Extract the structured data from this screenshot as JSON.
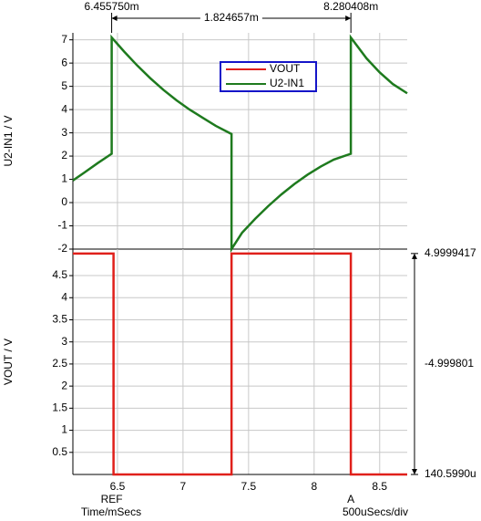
{
  "chart_data": [
    {
      "type": "line",
      "y_label": "U2-IN1 / V",
      "xlim": [
        6.16,
        8.71
      ],
      "xticks": [
        6.5,
        7,
        7.5,
        8,
        8.5
      ],
      "ylim": [
        -2,
        7.3
      ],
      "yticks": [
        -2,
        -1,
        0,
        1,
        2,
        3,
        4,
        5,
        6,
        7
      ],
      "grid": true,
      "series": [
        {
          "name": "U2-IN1",
          "color": "#1e7a1e",
          "x": [
            6.16,
            6.25,
            6.35,
            6.456,
            6.456,
            6.55,
            6.65,
            6.75,
            6.85,
            6.95,
            7.05,
            7.15,
            7.25,
            7.37,
            7.37,
            7.45,
            7.55,
            7.65,
            7.75,
            7.85,
            7.95,
            8.05,
            8.15,
            8.28,
            8.28,
            8.4,
            8.5,
            8.6,
            8.71
          ],
          "values": [
            0.95,
            1.3,
            1.7,
            2.1,
            7.1,
            6.5,
            5.9,
            5.35,
            4.85,
            4.4,
            4.0,
            3.65,
            3.3,
            2.95,
            -2.0,
            -1.3,
            -0.7,
            -0.15,
            0.35,
            0.8,
            1.2,
            1.55,
            1.85,
            2.1,
            7.1,
            6.2,
            5.6,
            5.1,
            4.7
          ]
        }
      ],
      "cursors": [
        {
          "x": 6.45575,
          "label": "6.455750m"
        },
        {
          "x": 8.280408,
          "label": "8.280408m"
        }
      ],
      "cursor_delta": "1.824657m"
    },
    {
      "type": "line",
      "y_label": "VOUT / V",
      "x_label": "Time/mSecs",
      "x_scale_note": "500uSecs/div",
      "xlim": [
        6.16,
        8.71
      ],
      "xticks": [
        6.5,
        7,
        7.5,
        8,
        8.5
      ],
      "ylim": [
        0,
        5.1
      ],
      "yticks": [
        0.5,
        1,
        1.5,
        2,
        2.5,
        3,
        3.5,
        4,
        4.5
      ],
      "grid": true,
      "series": [
        {
          "name": "VOUT",
          "color": "#e0201b",
          "x": [
            6.16,
            6.47,
            6.47,
            7.37,
            7.37,
            8.28,
            8.28,
            8.71
          ],
          "values": [
            5,
            5,
            0,
            0,
            5,
            5,
            0,
            0
          ]
        }
      ],
      "cursor_tags": [
        "REF",
        "A"
      ],
      "y_cursors": [
        {
          "value": 4.9999417,
          "label": "4.9999417"
        },
        {
          "value": 0.000140599,
          "label": "140.5990u"
        }
      ],
      "y_cursor_delta": "-4.999801"
    }
  ]
}
